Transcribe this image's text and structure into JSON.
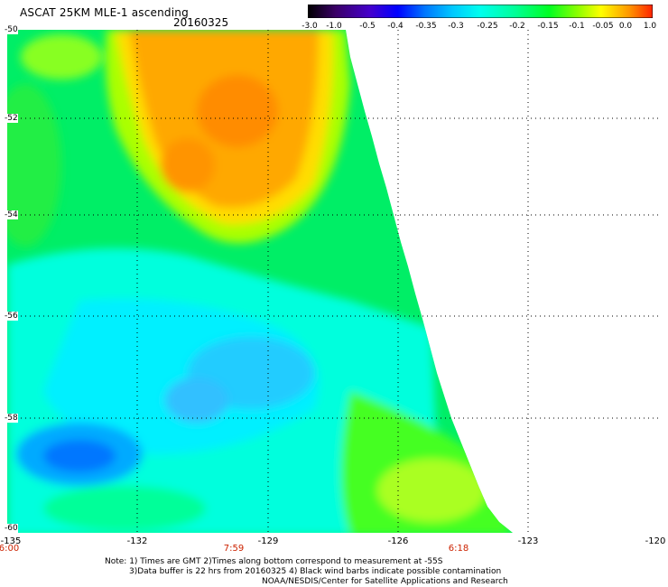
{
  "header": {
    "title": "ASCAT 25KM MLE-1 ascending",
    "date": "20160325"
  },
  "colorbar": {
    "labels": [
      "-3.0",
      "-1.0",
      "-0.5",
      "-0.4",
      "-0.35",
      "-0.3",
      "-0.25",
      "-0.2",
      "-0.15",
      "-0.1",
      "-0.05",
      "0.0",
      "1.0"
    ],
    "colors": [
      "#000000",
      "#3a0066",
      "#4400cc",
      "#0000ff",
      "#0077ff",
      "#00c8ff",
      "#00ffee",
      "#00ff99",
      "#00ff22",
      "#88ff00",
      "#ffff00",
      "#ff9900",
      "#ff2200"
    ]
  },
  "map": {
    "x_ticks": [
      "-135",
      "-132",
      "-129",
      "-126",
      "-123",
      "-120"
    ],
    "y_ticks": [
      "-50",
      "-52",
      "-54",
      "-56",
      "-58",
      "-60"
    ],
    "time_labels": [
      "6:00",
      "7:59",
      "6:18"
    ]
  },
  "notes": {
    "line1": "Note: 1) Times are GMT 2)Times along bottom correspond to measurement at -55S",
    "line2": "3)Data buffer is 22 hrs from 20160325 4) Black wind barbs indicate possible contamination",
    "line3": "NOAA/NESDIS/Center for Satellite Applications and Research"
  }
}
